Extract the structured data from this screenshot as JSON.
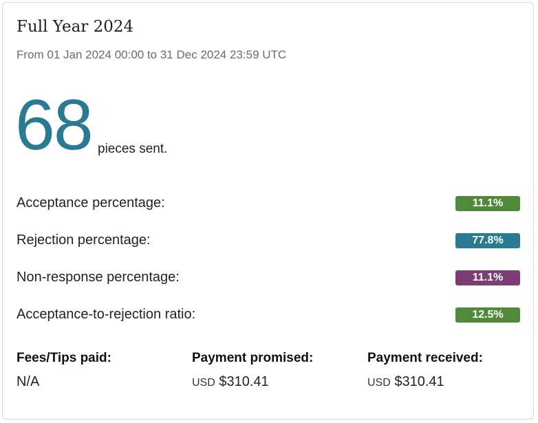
{
  "header": {
    "title": "Full Year 2024",
    "subtitle": "From 01 Jan 2024 00:00 to 31 Dec 2024 23:59 UTC"
  },
  "summary": {
    "count": "68",
    "caption": "pieces sent."
  },
  "stats": [
    {
      "label": "Acceptance percentage:",
      "value": "11.1%",
      "color": "#4e8a3a"
    },
    {
      "label": "Rejection percentage:",
      "value": "77.8%",
      "color": "#2a7a92"
    },
    {
      "label": "Non-response percentage:",
      "value": "11.1%",
      "color": "#7b3d73"
    },
    {
      "label": "Acceptance-to-rejection ratio:",
      "value": "12.5%",
      "color": "#4e8a3a"
    }
  ],
  "payments": {
    "fees": {
      "label": "Fees/Tips paid:",
      "value": "N/A"
    },
    "promised": {
      "label": "Payment promised:",
      "currency": "USD",
      "amount": "$310.41"
    },
    "received": {
      "label": "Payment received:",
      "currency": "USD",
      "amount": "$310.41"
    }
  }
}
